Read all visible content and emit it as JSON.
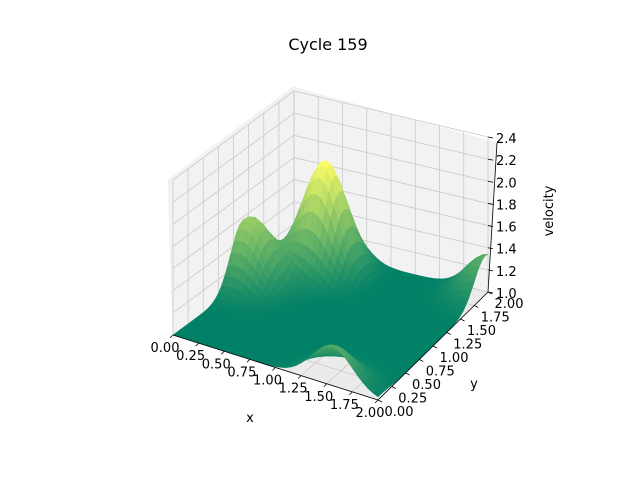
{
  "chart_data": {
    "type": "surface",
    "title": "Cycle 159",
    "xlabel": "x",
    "ylabel": "y",
    "zlabel": "velocity",
    "xlim": [
      0,
      2
    ],
    "ylim": [
      0,
      2
    ],
    "zlim": [
      1.0,
      2.4
    ],
    "x_ticks": [
      "0.00",
      "0.25",
      "0.50",
      "0.75",
      "1.00",
      "1.25",
      "1.50",
      "1.75",
      "2.00"
    ],
    "y_ticks": [
      "0.00",
      "0.25",
      "0.50",
      "0.75",
      "1.00",
      "1.25",
      "1.50",
      "1.75",
      "2.00"
    ],
    "z_ticks": [
      "1.0",
      "1.2",
      "1.4",
      "1.6",
      "1.8",
      "2.0",
      "2.2",
      "2.4"
    ],
    "grid": true,
    "colormap": "summer",
    "colormap_low": "#008066",
    "colormap_high": "#ffff66",
    "surface_features": {
      "baseline_velocity": 1.0,
      "peaks": [
        {
          "x": 0.08,
          "y": 1.15,
          "velocity": 1.62
        },
        {
          "x": 0.5,
          "y": 1.7,
          "velocity": 2.0
        },
        {
          "x": 1.55,
          "y": 0.0,
          "velocity": 1.35
        },
        {
          "x": 2.0,
          "y": 1.95,
          "velocity": 1.35
        }
      ]
    }
  }
}
